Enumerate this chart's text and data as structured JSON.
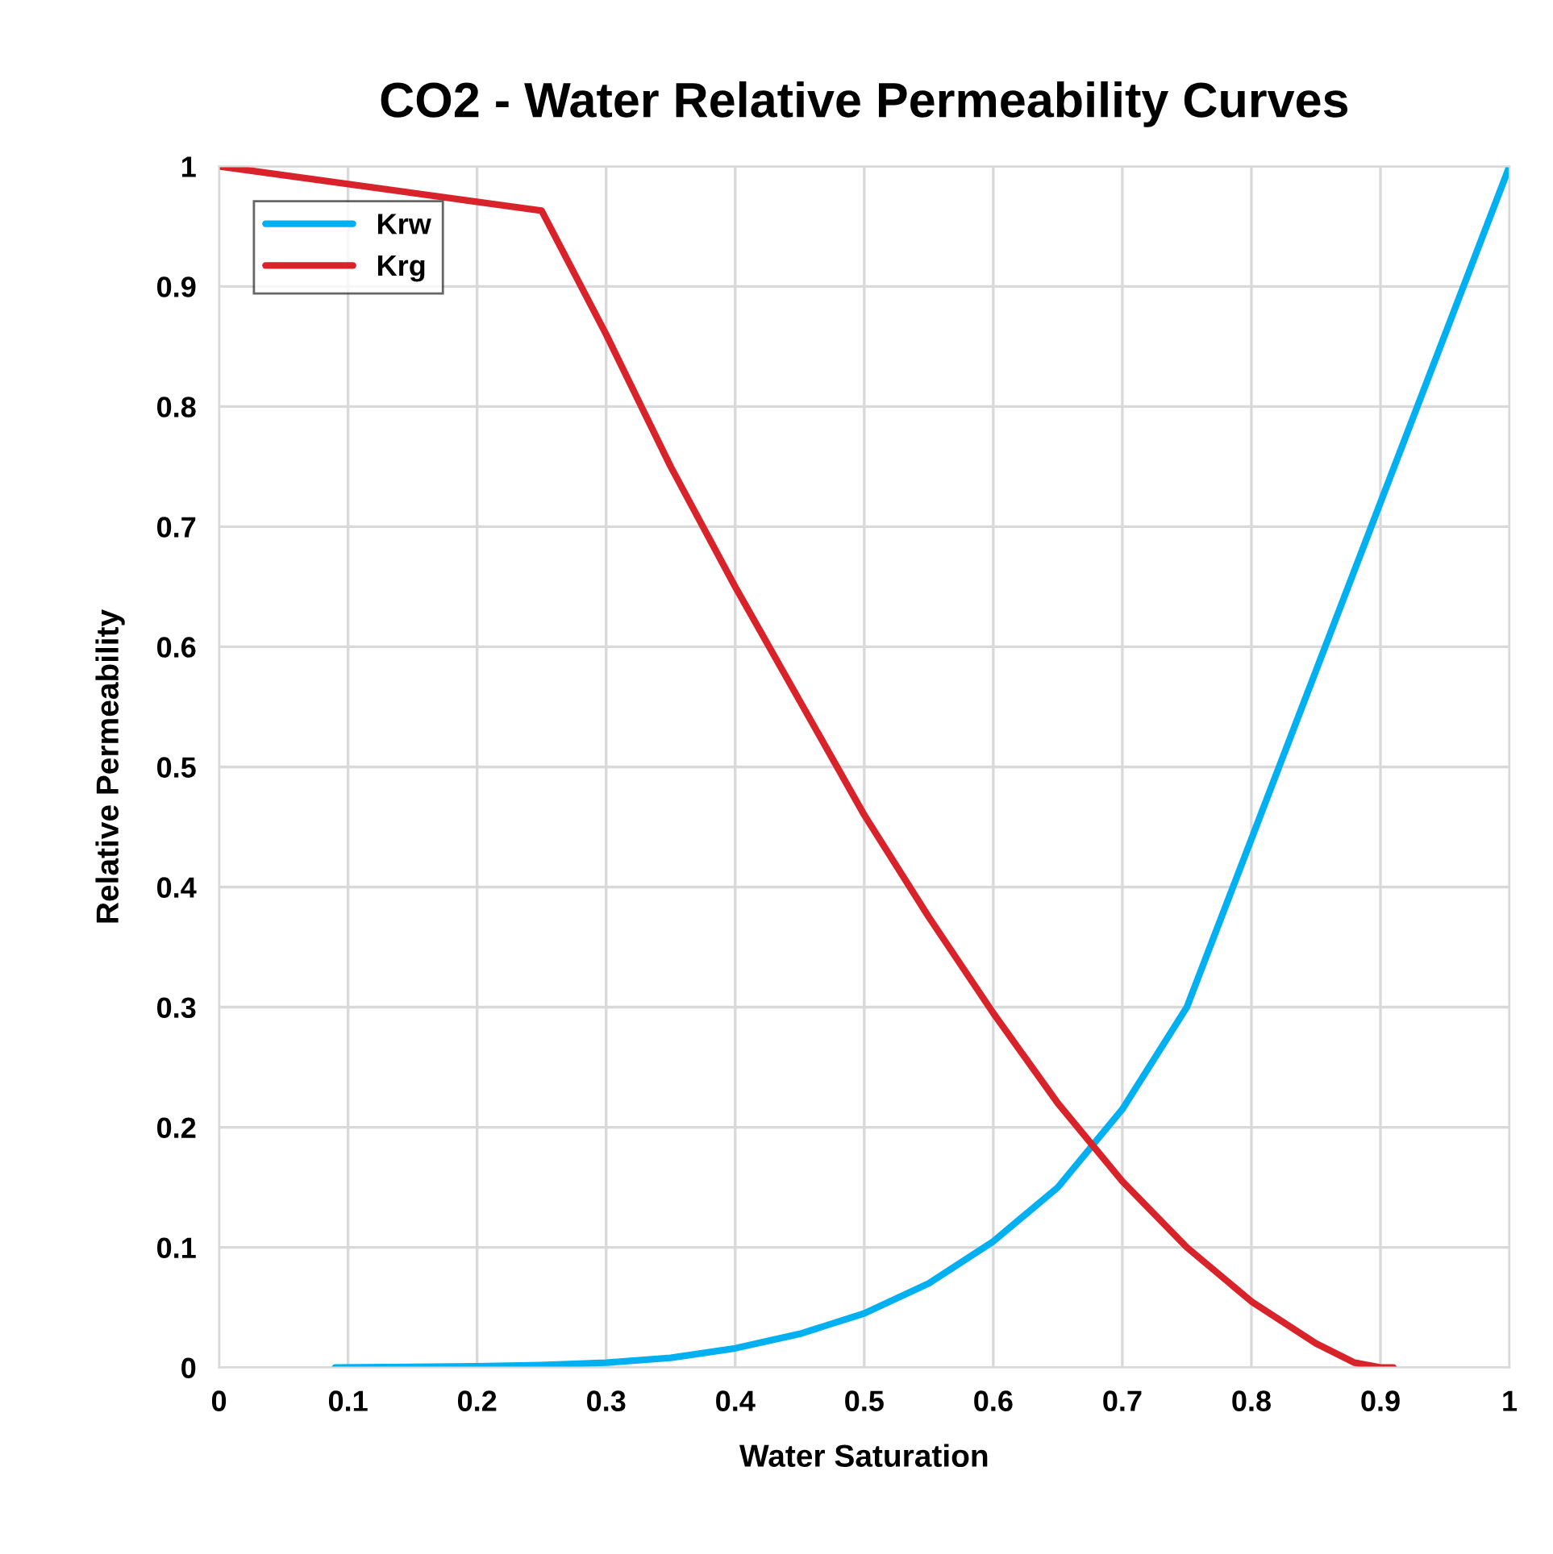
{
  "chart_data": {
    "type": "line",
    "title": "CO2 - Water Relative Permeability Curves",
    "xlabel": "Water Saturation",
    "ylabel": "Relative Permeability",
    "xlim": [
      0,
      1
    ],
    "ylim": [
      0,
      1
    ],
    "xticks": [
      0,
      0.1,
      0.2,
      0.3,
      0.4,
      0.5,
      0.6,
      0.7,
      0.8,
      0.9,
      1
    ],
    "yticks": [
      0,
      0.1,
      0.2,
      0.3,
      0.4,
      0.5,
      0.6,
      0.7,
      0.8,
      0.9,
      1
    ],
    "grid": true,
    "legend": "top left",
    "marker": "none",
    "line_style": "solid",
    "series": [
      {
        "name": "Krw",
        "color": "#00b0f0",
        "x": [
          0.09,
          0.2,
          0.25,
          0.3,
          0.35,
          0.4,
          0.45,
          0.5,
          0.55,
          0.6,
          0.65,
          0.7,
          0.75,
          0.8,
          0.85,
          0.9,
          1.0
        ],
        "values": [
          0,
          0.001,
          0.002,
          0.004,
          0.008,
          0.016,
          0.028,
          0.045,
          0.07,
          0.105,
          0.15,
          0.215,
          0.3,
          0.44,
          0.58,
          0.72,
          1.0
        ]
      },
      {
        "name": "Krg",
        "color": "#d9232a",
        "x": [
          0,
          0.25,
          0.3,
          0.35,
          0.4,
          0.45,
          0.5,
          0.55,
          0.6,
          0.65,
          0.7,
          0.75,
          0.8,
          0.85,
          0.88,
          0.9,
          0.91
        ],
        "values": [
          1.0,
          0.963,
          0.86,
          0.75,
          0.65,
          0.555,
          0.46,
          0.375,
          0.295,
          0.22,
          0.155,
          0.1,
          0.055,
          0.02,
          0.004,
          0,
          0
        ]
      }
    ]
  }
}
